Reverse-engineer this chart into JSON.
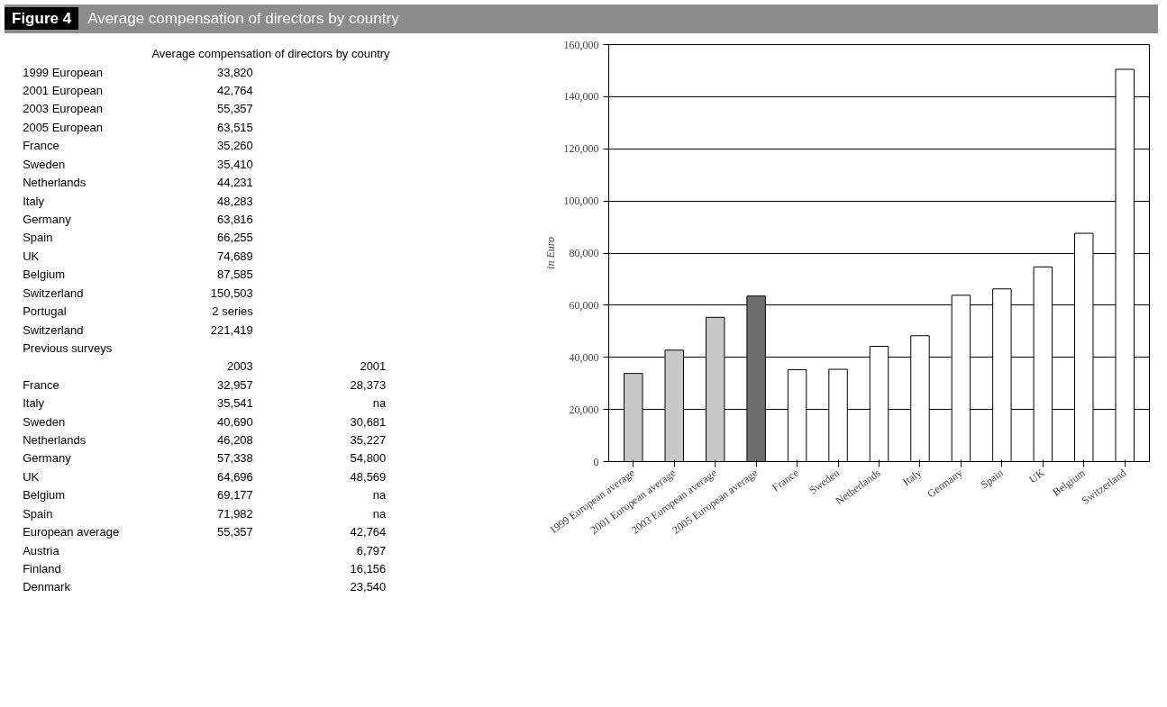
{
  "chart_data": [
    {
      "type": "other",
      "title": "Figure 4",
      "subtitle": "Average compensation of directors by country",
      "annotations": [
        "Average compensation of directors by country",
        "1999 European  33,820",
        "2001 European  42,764",
        "2003 European  55,357",
        "2005 European  63,515",
        "France  35,260",
        "Sweden  35,410",
        "Netherlands  44,231",
        "Italy  48,283",
        "Germany  63,816",
        "Spain  66,255",
        "UK  74,689",
        "Belgium  87,585",
        "Switzerland  150,503",
        "Portugal  2 series",
        "Switzerland  221,419",
        "Previous surveys",
        "  2003  2001",
        "France  32,957  28,373",
        "Italy  35,541  na",
        "Sweden  40,690  30,681",
        "Netherlands  46,208  35,227",
        "Germany  57,338  54,800",
        "UK  64,696  48,569",
        "Belgium  69,177  na",
        "Spain  71,982  na",
        "European average  55,357  42,764",
        "Austria    6,797",
        "Finland    16,156",
        "Denmark    23,540"
      ]
    },
    {
      "type": "bar",
      "ylabel": "in Euro",
      "categories": [
        "1999 European average",
        "2001 European average",
        "2003 European average",
        "2005 European average",
        "France",
        "Sweden",
        "Netherlands",
        "Italy",
        "Germany",
        "Spain",
        "UK",
        "Belgium",
        "Switzerland"
      ],
      "values": [
        33820,
        42764,
        55357,
        63515,
        35260,
        35410,
        44231,
        48283,
        63816,
        66255,
        74689,
        87585,
        150503
      ],
      "colors": [
        "#c8c8c8",
        "#c8c8c8",
        "#c8c8c8",
        "#6e6e6e",
        "#ffffff",
        "#ffffff",
        "#ffffff",
        "#ffffff",
        "#ffffff",
        "#ffffff",
        "#ffffff",
        "#ffffff",
        "#ffffff"
      ],
      "ylim": [
        0,
        160000
      ],
      "yticks": [
        {
          "value": 0,
          "label": "0"
        },
        {
          "value": 20000,
          "label": "20,000"
        },
        {
          "value": 40000,
          "label": "40,000"
        },
        {
          "value": 60000,
          "label": "60,000"
        },
        {
          "value": 80000,
          "label": "80,000"
        },
        {
          "value": 100000,
          "label": "100,000"
        },
        {
          "value": 120000,
          "label": "120,000"
        },
        {
          "value": 140000,
          "label": "140,000"
        },
        {
          "value": 160000,
          "label": "160,000"
        }
      ],
      "grid": "y"
    }
  ]
}
